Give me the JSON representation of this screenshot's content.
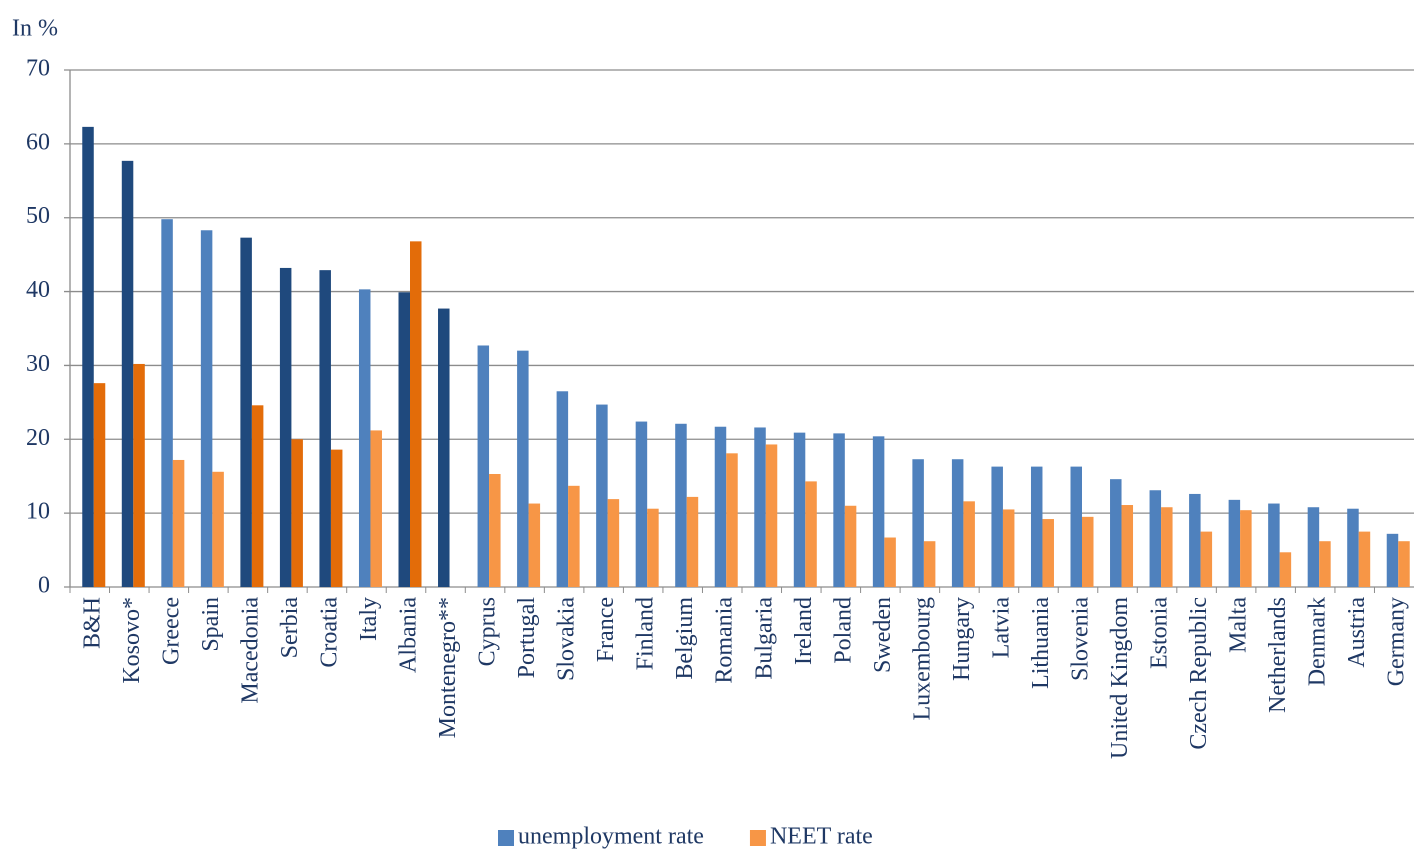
{
  "chart_data": {
    "type": "bar",
    "ylabel": "In %",
    "categories": [
      "B&H",
      "Kosovo*",
      "Greece",
      "Spain",
      "Macedonia",
      "Serbia",
      "Croatia",
      "Italy",
      "Albania",
      "Montenegro**",
      "Cyprus",
      "Portugal",
      "Slovakia",
      "France",
      "Finland",
      "Belgium",
      "Romania",
      "Bulgaria",
      "Ireland",
      "Poland",
      "Sweden",
      "Luxembourg",
      "Hungary",
      "Latvia",
      "Lithuania",
      "Slovenia",
      "United Kingdom",
      "Estonia",
      "Czech Republic",
      "Malta",
      "Netherlands",
      "Denmark",
      "Austria",
      "Germany"
    ],
    "series": [
      {
        "name": "unemployment rate",
        "color": "#4f81bd",
        "colors": [
          "#1f497d",
          "#1f497d",
          "#4f81bd",
          "#4f81bd",
          "#1f497d",
          "#1f497d",
          "#1f497d",
          "#4f81bd",
          "#1f497d",
          "#1f497d",
          "#4f81bd",
          "#4f81bd",
          "#4f81bd",
          "#4f81bd",
          "#4f81bd",
          "#4f81bd",
          "#4f81bd",
          "#4f81bd",
          "#4f81bd",
          "#4f81bd",
          "#4f81bd",
          "#4f81bd",
          "#4f81bd",
          "#4f81bd",
          "#4f81bd",
          "#4f81bd",
          "#4f81bd",
          "#4f81bd",
          "#4f81bd",
          "#4f81bd",
          "#4f81bd",
          "#4f81bd",
          "#4f81bd",
          "#4f81bd"
        ],
        "values": [
          62.3,
          57.7,
          49.8,
          48.3,
          47.3,
          43.2,
          42.9,
          40.3,
          39.9,
          37.7,
          32.7,
          32.0,
          26.5,
          24.7,
          22.4,
          22.1,
          21.7,
          21.6,
          20.9,
          20.8,
          20.4,
          17.3,
          17.3,
          16.3,
          16.3,
          16.3,
          14.6,
          13.1,
          12.6,
          11.8,
          11.3,
          10.8,
          10.6,
          7.2
        ]
      },
      {
        "name": "NEET rate",
        "color": "#f79646",
        "colors": [
          "#e36c09",
          "#e36c09",
          "#f79646",
          "#f79646",
          "#e36c09",
          "#e36c09",
          "#e36c09",
          "#f79646",
          "#e36c09",
          "#e36c09",
          "#f79646",
          "#f79646",
          "#f79646",
          "#f79646",
          "#f79646",
          "#f79646",
          "#f79646",
          "#f79646",
          "#f79646",
          "#f79646",
          "#f79646",
          "#f79646",
          "#f79646",
          "#f79646",
          "#f79646",
          "#f79646",
          "#f79646",
          "#f79646",
          "#f79646",
          "#f79646",
          "#f79646",
          "#f79646",
          "#f79646",
          "#f79646"
        ],
        "values": [
          27.6,
          30.2,
          17.2,
          15.6,
          24.6,
          20.0,
          18.6,
          21.2,
          46.8,
          null,
          15.3,
          11.3,
          13.7,
          11.9,
          10.6,
          12.2,
          18.1,
          19.3,
          14.3,
          11.0,
          6.7,
          6.2,
          11.6,
          10.5,
          9.2,
          9.5,
          11.1,
          10.8,
          7.5,
          10.4,
          4.7,
          6.2,
          7.5,
          6.2
        ]
      }
    ],
    "ylim": [
      0,
      70
    ],
    "yticks": [
      0,
      10,
      20,
      30,
      40,
      50,
      60,
      70
    ],
    "grid": true,
    "legend": "bottom"
  }
}
